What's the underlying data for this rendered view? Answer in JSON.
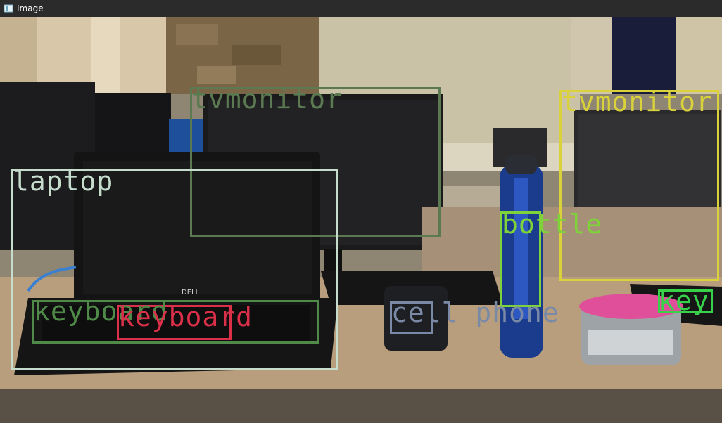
{
  "window": {
    "title": "Image"
  },
  "detections": [
    {
      "label": "tvmonitor",
      "color": "#5c7a52"
    },
    {
      "label": "laptop",
      "color": "#c6dccd"
    },
    {
      "label": "tvmonitor",
      "color": "#d9d23a"
    },
    {
      "label": "bottle",
      "color": "#7ed23a"
    },
    {
      "label": "keyboard",
      "color": "#4f8a49"
    },
    {
      "label": "keyboard",
      "color": "#dc2f4a"
    },
    {
      "label": "cell phone",
      "color": "#7a8aa6"
    },
    {
      "label": "key",
      "color": "#38d24a"
    }
  ]
}
